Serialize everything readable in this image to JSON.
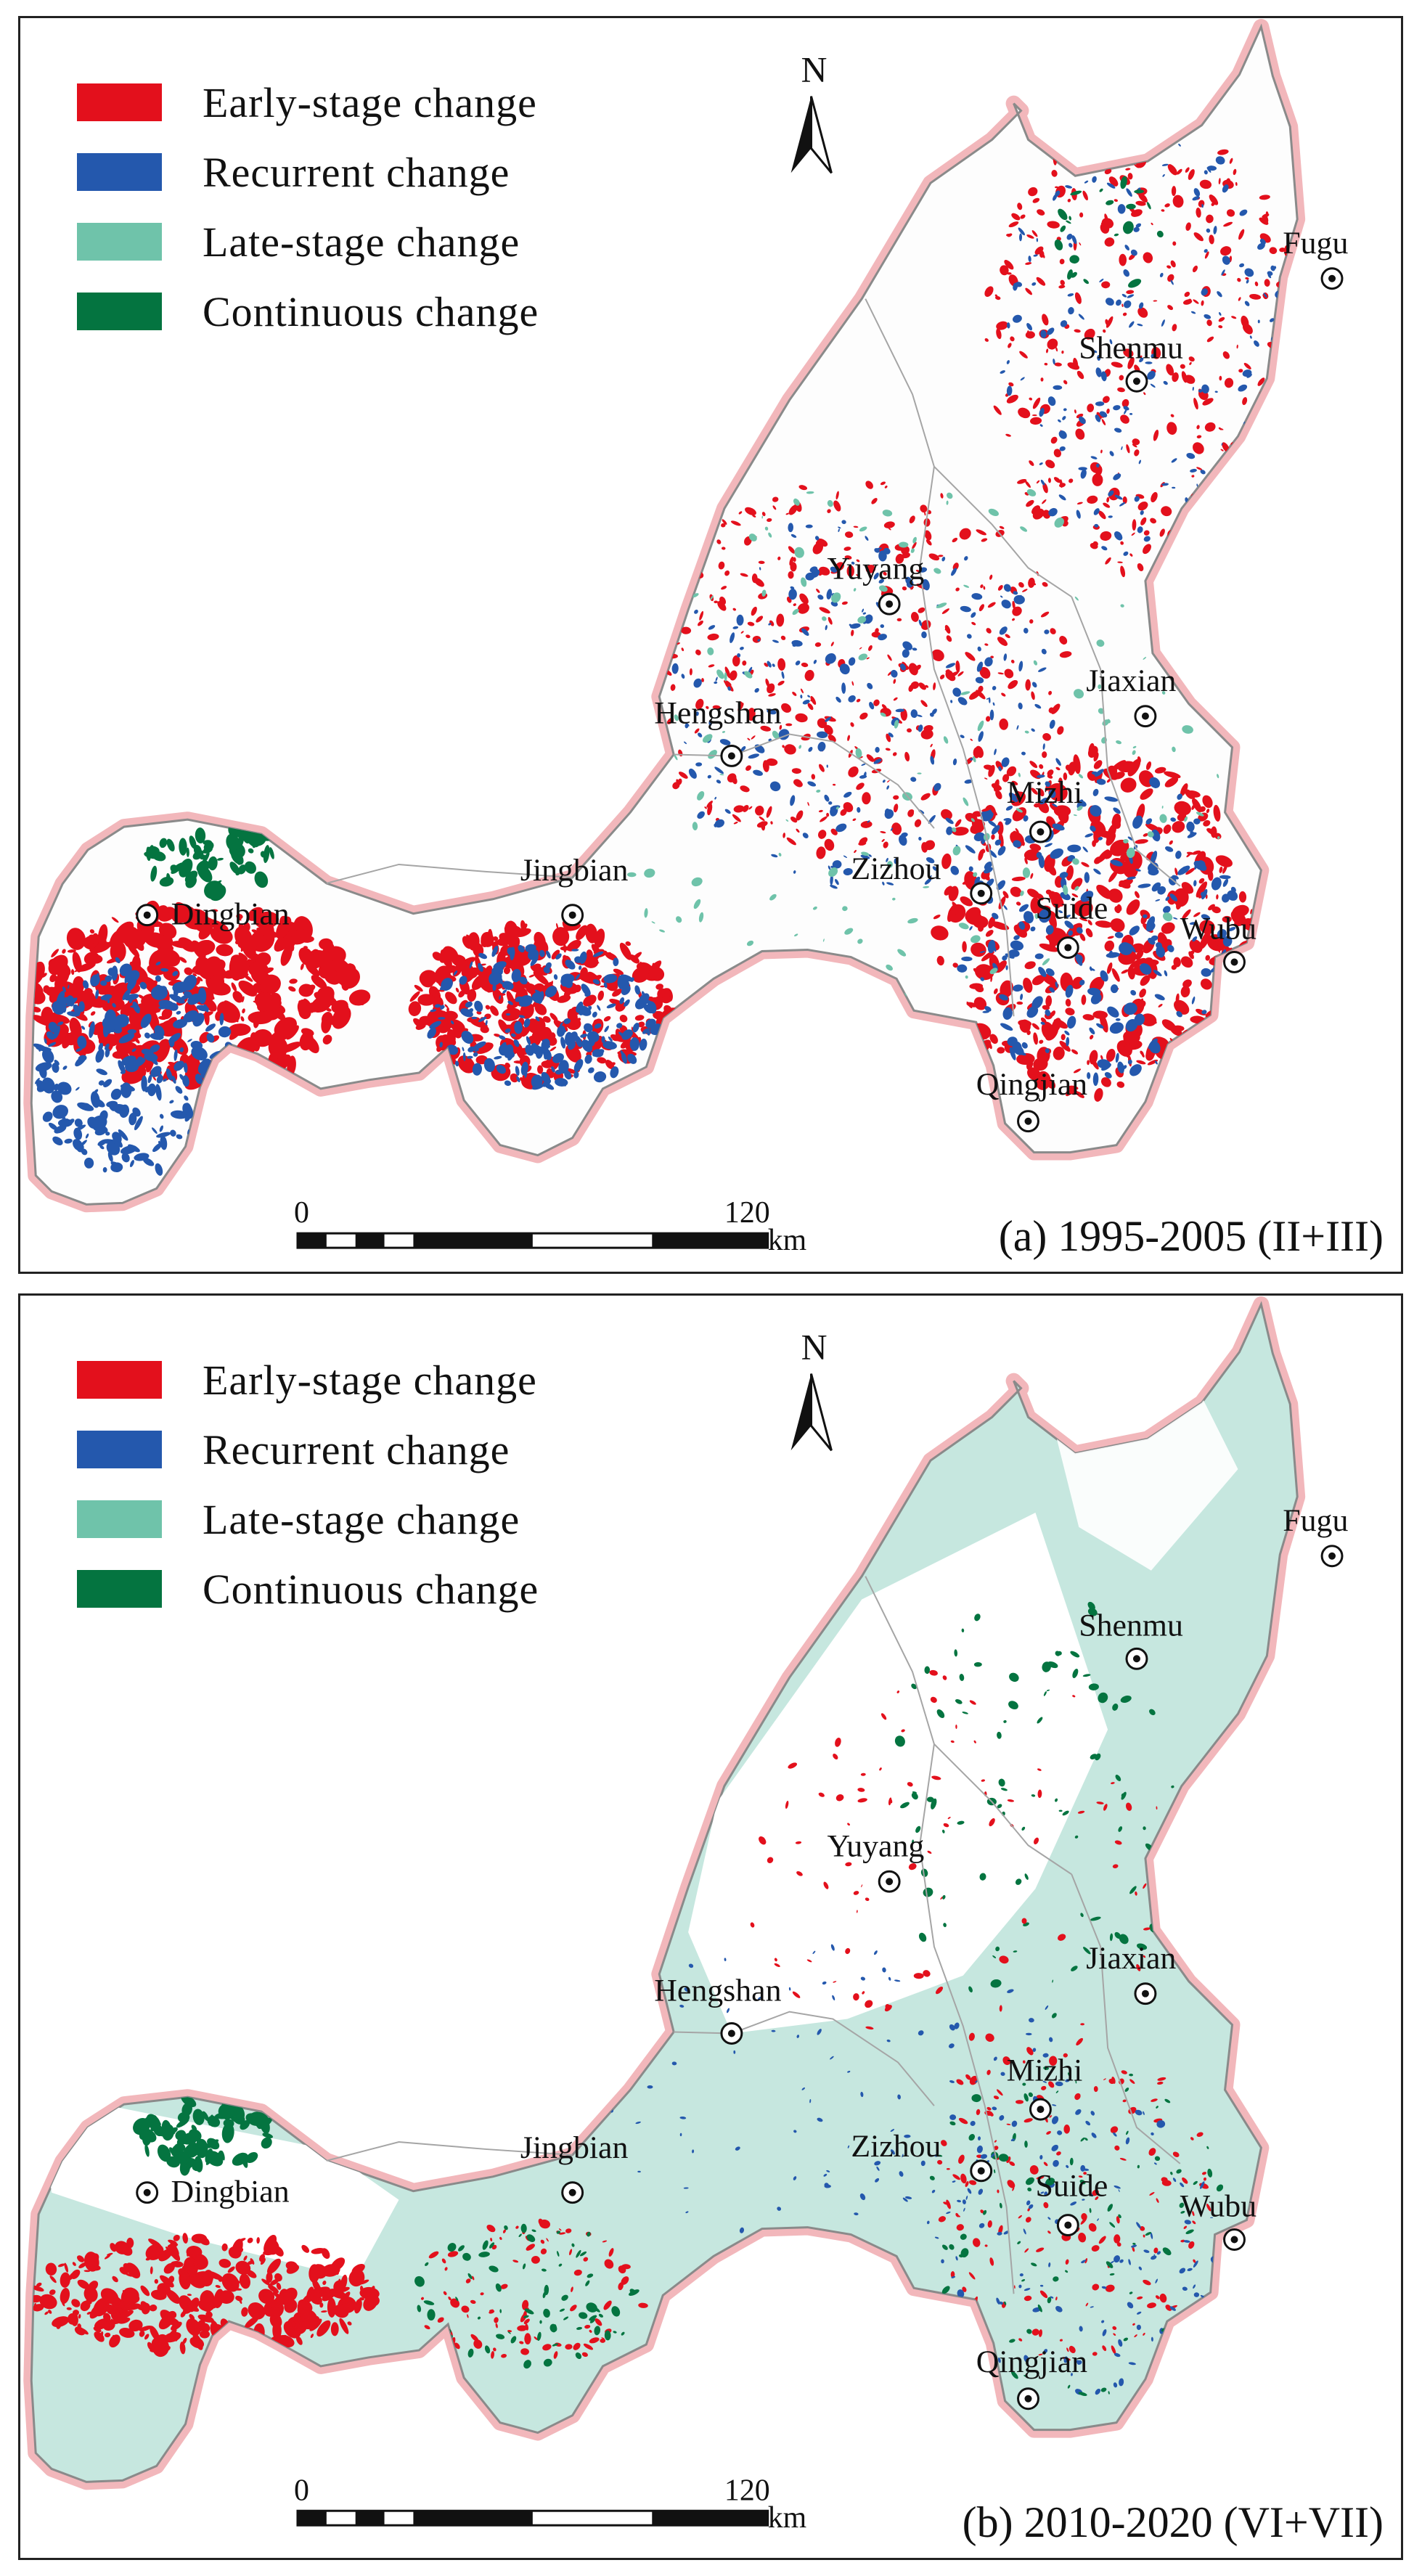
{
  "legend": {
    "items": [
      {
        "label": "Early-stage change",
        "color": "#e3101c"
      },
      {
        "label": "Recurrent change",
        "color": "#2458ad"
      },
      {
        "label": "Late-stage change",
        "color": "#6fc3aa"
      },
      {
        "label": "Continuous change",
        "color": "#047440"
      }
    ]
  },
  "north_arrow": {
    "label": "N"
  },
  "scale_bar": {
    "start": "0",
    "end": "120",
    "unit": "km"
  },
  "cities": [
    {
      "name": "Fugu"
    },
    {
      "name": "Shenmu"
    },
    {
      "name": "Yuyang"
    },
    {
      "name": "Jiaxian"
    },
    {
      "name": "Hengshan"
    },
    {
      "name": "Mizhi"
    },
    {
      "name": "Jingbian"
    },
    {
      "name": "Zizhou"
    },
    {
      "name": "Dingbian"
    },
    {
      "name": "Suide"
    },
    {
      "name": "Wubu"
    },
    {
      "name": "Qingjian"
    }
  ],
  "panels": [
    {
      "caption": "(a) 1995-2005 (II+III)"
    },
    {
      "caption": "(b) 2010-2020 (VI+VII)"
    }
  ],
  "colors": {
    "boundary_halo": "#f2b7bb",
    "boundary": "#8a8a8a",
    "background": "#ffffff",
    "panel_b_late_fill": "#c6e7df"
  }
}
